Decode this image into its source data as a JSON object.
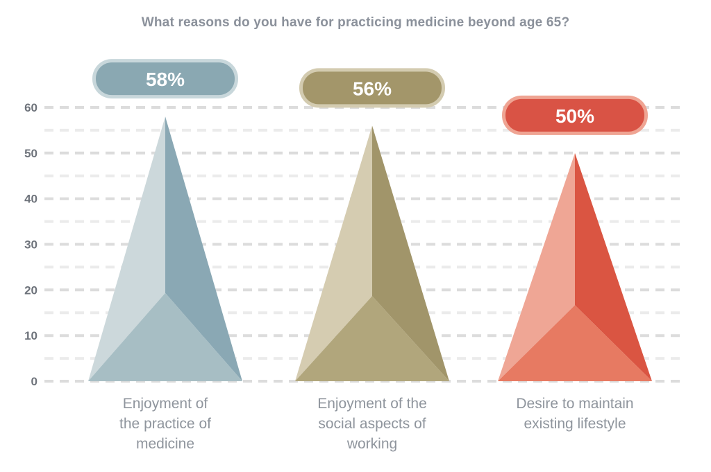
{
  "chart_data": {
    "type": "bar",
    "bar_style": "3d-pyramid",
    "title": "What reasons do you have for practicing medicine beyond age 65?",
    "categories": [
      "Enjoyment of the practice of medicine",
      "Enjoyment of the social aspects of working",
      "Desire to maintain existing lifestyle"
    ],
    "category_lines": [
      [
        "Enjoyment of",
        "the practice of",
        "medicine"
      ],
      [
        "Enjoyment of the",
        "social aspects of",
        "working"
      ],
      [
        "Desire to maintain",
        "existing lifestyle"
      ]
    ],
    "values": [
      58,
      56,
      50
    ],
    "value_labels": [
      "58%",
      "56%",
      "50%"
    ],
    "xlabel": "",
    "ylabel": "",
    "ylim": [
      0,
      60
    ],
    "y_ticks": [
      0,
      10,
      20,
      30,
      40,
      50,
      60
    ],
    "grid_step": 5,
    "grid": "horizontal dashed lines every 5 units, labels every 10",
    "legend": "none",
    "series_colors": [
      {
        "name": "blue-gray",
        "left": "#ccd8db",
        "right": "#8aa8b4",
        "bottom": "#a7bec4",
        "badge": "#8aa8b2",
        "badge_ring": "#c8d7db"
      },
      {
        "name": "olive",
        "left": "#d5ccb1",
        "right": "#a1956a",
        "bottom": "#b1a67c",
        "badge": "#a3966a",
        "badge_ring": "#d3cbb0"
      },
      {
        "name": "red",
        "left": "#efa695",
        "right": "#da5542",
        "bottom": "#e77a62",
        "badge": "#d95345",
        "badge_ring": "#efa493"
      }
    ],
    "colors": {
      "background": "#ffffff",
      "title_text": "#8b919b",
      "tick_text": "#6e737b",
      "category_text": "#8f959d",
      "badge_text": "#ffffff",
      "grid_major": "#dcdcdc",
      "grid_minor": "#ebebeb"
    }
  }
}
